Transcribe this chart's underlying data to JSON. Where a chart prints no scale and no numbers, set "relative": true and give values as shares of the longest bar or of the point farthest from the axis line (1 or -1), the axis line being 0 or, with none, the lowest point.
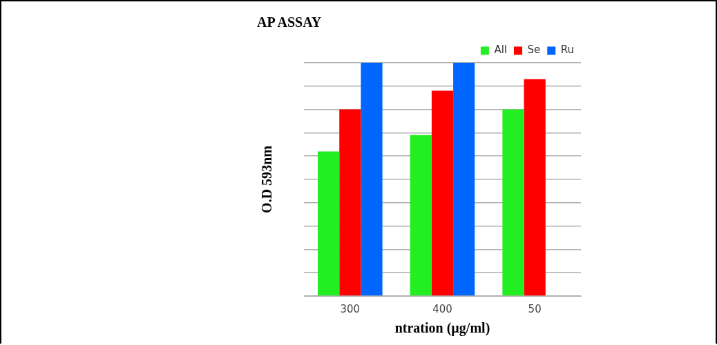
{
  "chart_data": {
    "type": "bar",
    "title": "AP ASSAY",
    "xlabel": "ntration (µg/ml)",
    "ylabel": "O.D 593nm",
    "relative": true,
    "grid": "y",
    "legend": "top right",
    "categories": [
      "300",
      "400",
      "50"
    ],
    "series": [
      {
        "name": "All",
        "color": "#22ee22",
        "values": [
          0.62,
          0.69,
          0.8
        ]
      },
      {
        "name": "Se",
        "color": "#ff0000",
        "values": [
          0.8,
          0.88,
          0.93
        ]
      },
      {
        "name": "Ru",
        "color": "#0066ff",
        "values": [
          1,
          1,
          null
        ]
      }
    ]
  }
}
